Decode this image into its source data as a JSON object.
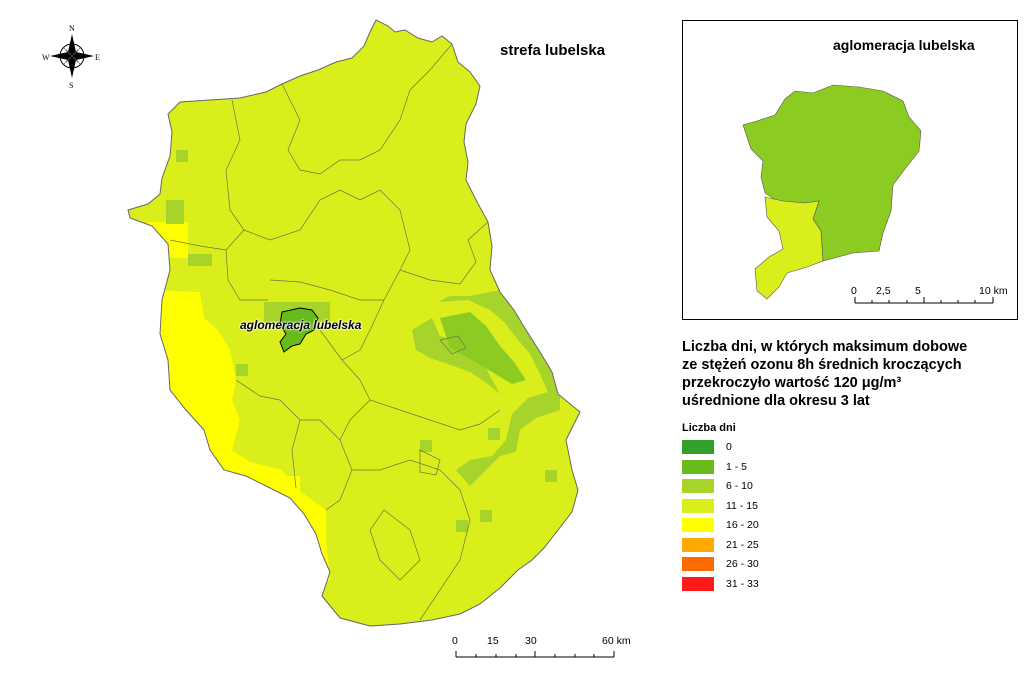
{
  "titles": {
    "zone": "strefa lubelska",
    "inset": "aglomeracja lubelska",
    "city_label": "aglomeracja lubelska"
  },
  "compass": {
    "n": "N",
    "s": "S",
    "e": "E",
    "w": "W"
  },
  "legend": {
    "title_lines": [
      "Liczba dni, w których maksimum dobowe",
      "ze stężeń ozonu 8h średnich kroczących",
      "przekroczyło wartość 120 μg/m³",
      "uśrednione dla okresu 3 lat"
    ],
    "subtitle": "Liczba dni",
    "classes": [
      {
        "label": "0",
        "color": "#33a02c"
      },
      {
        "label": "1 - 5",
        "color": "#66bb1a"
      },
      {
        "label": "6 - 10",
        "color": "#a6d42b"
      },
      {
        "label": "11 - 15",
        "color": "#d9ee1a"
      },
      {
        "label": "16 - 20",
        "color": "#ffff00"
      },
      {
        "label": "21 - 25",
        "color": "#ffaa00"
      },
      {
        "label": "26 - 30",
        "color": "#ff6a00"
      },
      {
        "label": "31 - 33",
        "color": "#ff1a1a"
      }
    ]
  },
  "scalebar_main": {
    "ticks": [
      "0",
      "15",
      "30",
      "60 km"
    ]
  },
  "scalebar_inset": {
    "ticks": [
      "0",
      "2,5",
      "5",
      "10 km"
    ]
  }
}
